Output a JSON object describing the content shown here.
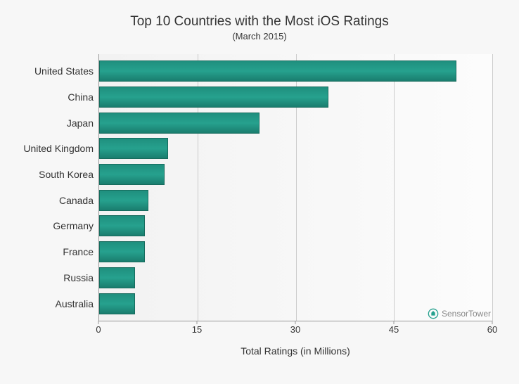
{
  "chart": {
    "type": "bar-horizontal",
    "title": "Top 10 Countries with the Most iOS Ratings",
    "title_fontsize": 19,
    "subtitle": "(March 2015)",
    "subtitle_fontsize": 13,
    "xlabel": "Total Ratings (in Millions)",
    "xlabel_fontsize": 14,
    "xlim": [
      0,
      60
    ],
    "xtick_step": 15,
    "xticks": [
      0,
      15,
      30,
      45,
      60
    ],
    "tick_fontsize": 13,
    "label_fontsize": 14,
    "background_gradient": [
      "#f2f2f2",
      "#fcfcfc"
    ],
    "grid_color": "#cccccc",
    "axis_color": "#999999",
    "text_color": "#333333",
    "bar_color": "#1f8f7e",
    "bar_border_color": "#166b5d",
    "categories": [
      "United States",
      "China",
      "Japan",
      "United Kingdom",
      "South Korea",
      "Canada",
      "Germany",
      "France",
      "Russia",
      "Australia"
    ],
    "values": [
      54.5,
      35.0,
      24.5,
      10.5,
      10.0,
      7.5,
      7.0,
      7.0,
      5.5,
      5.5
    ]
  },
  "watermark": {
    "text": "SensorTower",
    "icon_color": "#26a18e"
  }
}
